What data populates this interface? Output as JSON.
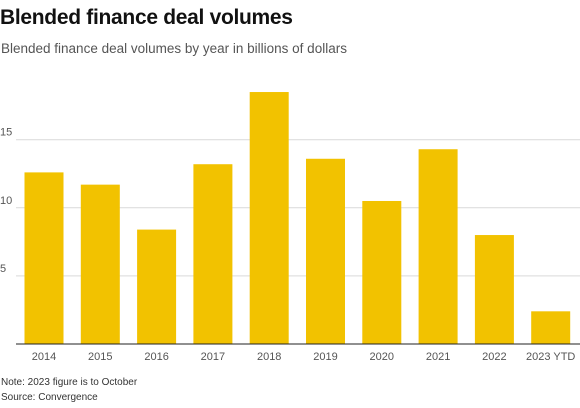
{
  "title": "Blended finance deal volumes",
  "subtitle": "Blended finance deal volumes by year in billions of dollars",
  "note": "Note: 2023 figure is to October",
  "source": "Source: Convergence",
  "colors": {
    "bar": "#f2c200",
    "grid": "#d9d9d9",
    "axis": "#222222",
    "text": "#555555"
  },
  "chart_data": {
    "type": "bar",
    "title": "Blended finance deal volumes",
    "subtitle": "Blended finance deal volumes by year in billions of dollars",
    "categories": [
      "2014",
      "2015",
      "2016",
      "2017",
      "2018",
      "2019",
      "2020",
      "2021",
      "2022",
      "2023 YTD"
    ],
    "values": [
      12.6,
      11.7,
      8.4,
      13.2,
      18.5,
      13.6,
      10.5,
      14.3,
      8.0,
      2.4
    ],
    "yticks": [
      5,
      10,
      15
    ],
    "ylim": [
      0,
      19.5
    ],
    "grid": true,
    "xlabel": "",
    "ylabel": ""
  }
}
